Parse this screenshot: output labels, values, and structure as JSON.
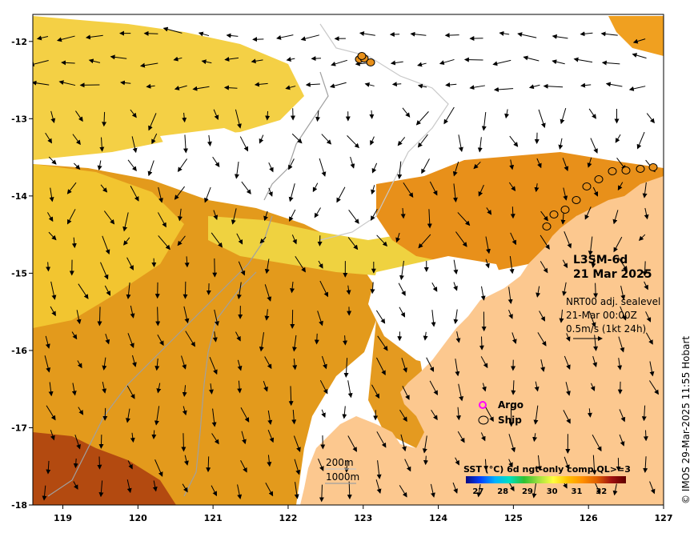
{
  "map": {
    "title": "L3SM-6d",
    "date": "21 Mar 2025",
    "current_source": "NRT00 adj. sealevel",
    "current_time": "21-Mar 00:00Z",
    "current_scale": "0.5m/s (1kt 24h)",
    "legend": {
      "argo_label": "Argo",
      "argo_color": "#ff00ff",
      "ship_label": "Ship",
      "ship_color": "#000000"
    },
    "contours": {
      "c200_label": "200m",
      "c1000_label": "1000m",
      "c200_color": "#c8c8c8",
      "c1000_color": "#a0a0a0"
    },
    "colorbar": {
      "title": "SST (°C) 6d ngt-only comp QL>=3",
      "ticks": [
        "27",
        "28",
        "29",
        "30",
        "31",
        "32"
      ],
      "range": [
        26.5,
        33
      ],
      "stops": [
        "#0a0a80",
        "#0040ff",
        "#00b0ff",
        "#00e0c0",
        "#30c030",
        "#a0e040",
        "#ffff40",
        "#ffc000",
        "#ff9000",
        "#e06000",
        "#a01010",
        "#600000"
      ]
    },
    "x_ticks": [
      "119",
      "120",
      "121",
      "122",
      "123",
      "124",
      "125",
      "126",
      "127"
    ],
    "y_ticks": [
      "-12",
      "-13",
      "-14",
      "-15",
      "-16",
      "-17",
      "-18"
    ],
    "lon_range": [
      118.6,
      127
    ],
    "lat_range": [
      -18,
      -11.65
    ],
    "land_color": "#fcc88f",
    "credit": "© IMOS 29-Mar-2025 11:55 Hobart"
  }
}
